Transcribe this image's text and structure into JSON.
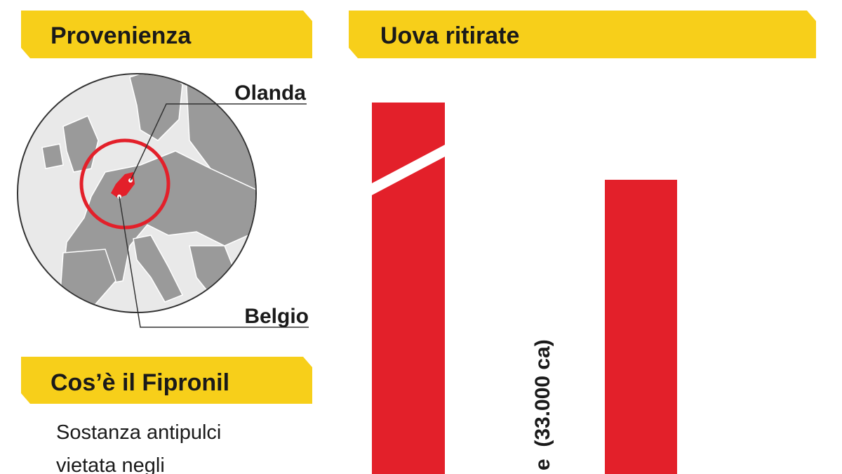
{
  "header_provenienza": {
    "title": "Provenienza"
  },
  "map": {
    "labels": [
      "Olanda",
      "Belgio"
    ]
  },
  "header_fipronil": {
    "title": "Cos’è il Fipronil"
  },
  "fipronil_text": {
    "lines": [
      "Sostanza antipulci",
      "vietata negli"
    ]
  },
  "header_uova": {
    "title": "Uova ritirate"
  },
  "bar_label": "e  (33.000 ca)"
}
